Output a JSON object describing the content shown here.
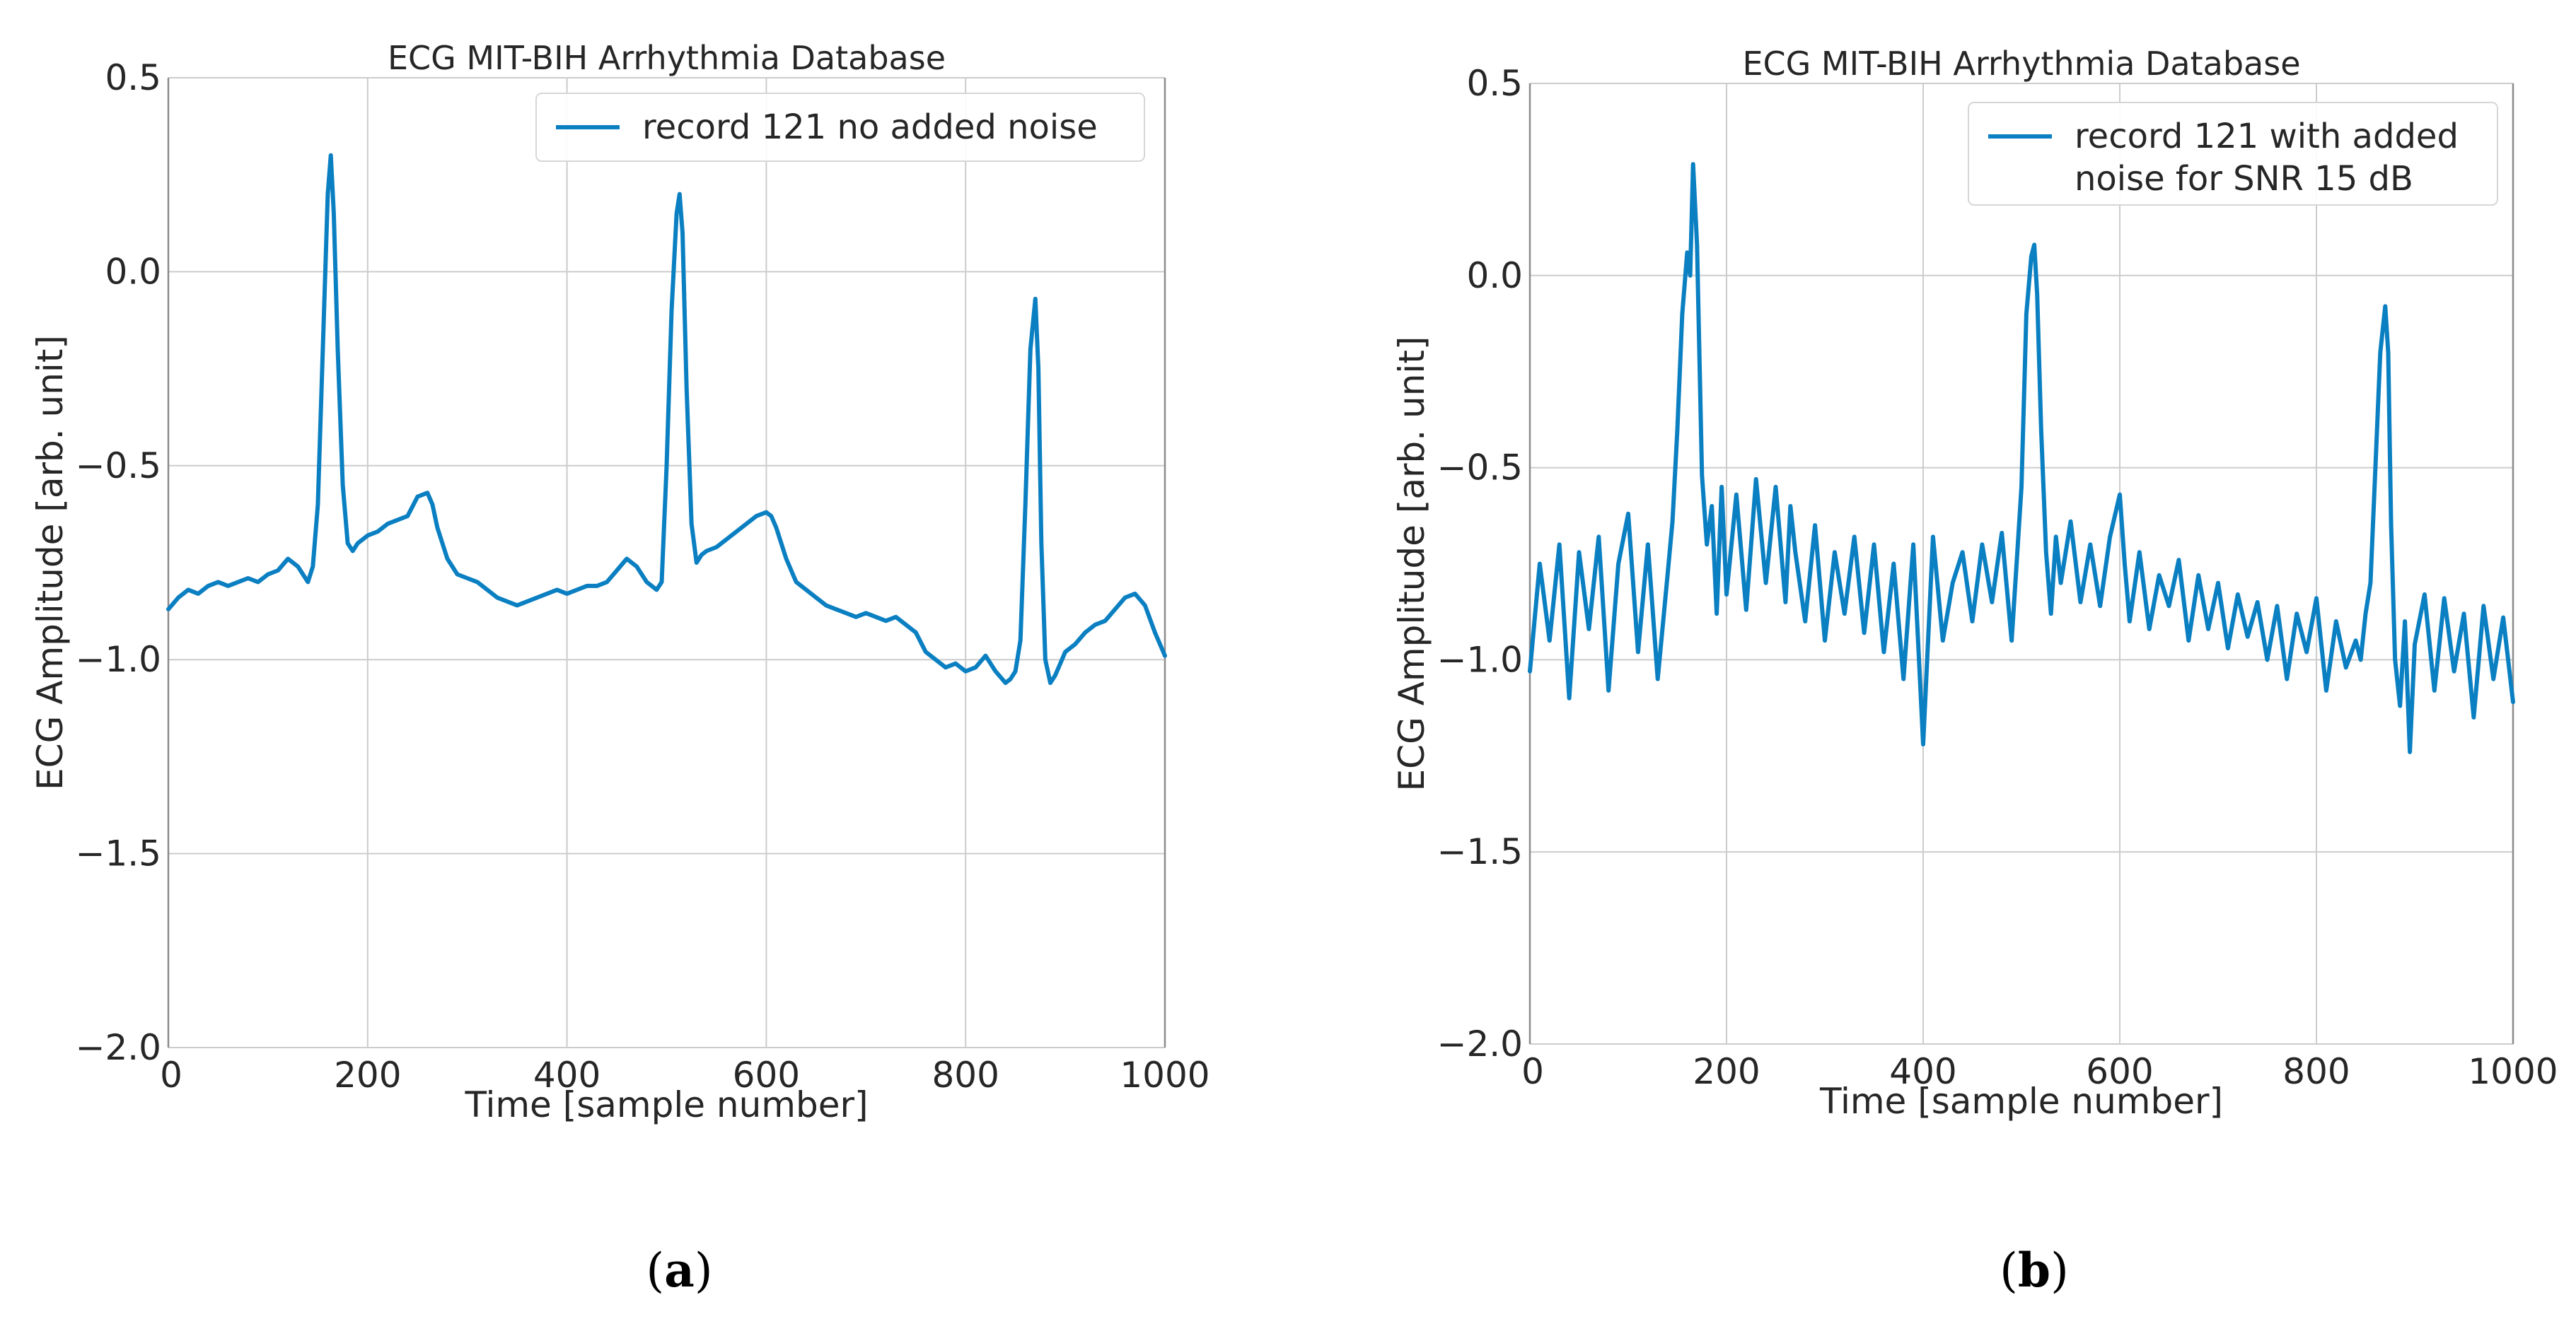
{
  "colors": {
    "line": "#0a7fc1",
    "grid": "#cccccc",
    "axis": "#8c8c8c",
    "text": "#262626"
  },
  "chart_data": [
    {
      "type": "line",
      "title": "ECG MIT-BIH Arrhythmia Database",
      "xlabel": "Time [sample number]",
      "ylabel": "ECG Amplitude [arb. unit]",
      "xlim": [
        0,
        1000
      ],
      "ylim": [
        -2.0,
        0.5
      ],
      "xticks": [
        0,
        200,
        400,
        600,
        800,
        1000
      ],
      "xtick_labels": [
        "0",
        "200",
        "400",
        "600",
        "800",
        "1000"
      ],
      "yticks": [
        -2.0,
        -1.5,
        -1.0,
        -0.5,
        0.0,
        0.5
      ],
      "ytick_labels": [
        "−2.0",
        "−1.5",
        "−1.0",
        "−0.5",
        "0.0",
        "0.5"
      ],
      "grid": true,
      "legend_position": "top-right",
      "panel_label": {
        "open": "(",
        "letter": "a",
        "close": ")"
      },
      "series": [
        {
          "name": "record 121 no added noise",
          "x": [
            0,
            10,
            20,
            30,
            40,
            50,
            60,
            70,
            80,
            90,
            100,
            110,
            120,
            130,
            140,
            145,
            150,
            155,
            160,
            163,
            166,
            170,
            175,
            180,
            185,
            190,
            195,
            200,
            210,
            220,
            230,
            240,
            250,
            260,
            265,
            270,
            280,
            290,
            300,
            310,
            320,
            330,
            340,
            350,
            360,
            370,
            380,
            390,
            400,
            410,
            420,
            430,
            440,
            450,
            460,
            470,
            480,
            490,
            495,
            500,
            505,
            510,
            513,
            516,
            520,
            525,
            530,
            535,
            540,
            550,
            560,
            570,
            580,
            590,
            600,
            605,
            610,
            620,
            630,
            640,
            650,
            660,
            670,
            680,
            690,
            700,
            710,
            720,
            730,
            740,
            750,
            760,
            770,
            780,
            790,
            800,
            810,
            820,
            830,
            840,
            845,
            850,
            855,
            860,
            865,
            870,
            873,
            876,
            880,
            885,
            890,
            895,
            900,
            910,
            920,
            930,
            940,
            950,
            960,
            970,
            980,
            990,
            1000
          ],
          "y": [
            -0.87,
            -0.84,
            -0.82,
            -0.83,
            -0.81,
            -0.8,
            -0.81,
            -0.8,
            -0.79,
            -0.8,
            -0.78,
            -0.77,
            -0.74,
            -0.76,
            -0.8,
            -0.76,
            -0.6,
            -0.2,
            0.2,
            0.3,
            0.15,
            -0.2,
            -0.55,
            -0.7,
            -0.72,
            -0.7,
            -0.69,
            -0.68,
            -0.67,
            -0.65,
            -0.64,
            -0.63,
            -0.58,
            -0.57,
            -0.6,
            -0.66,
            -0.74,
            -0.78,
            -0.79,
            -0.8,
            -0.82,
            -0.84,
            -0.85,
            -0.86,
            -0.85,
            -0.84,
            -0.83,
            -0.82,
            -0.83,
            -0.82,
            -0.81,
            -0.81,
            -0.8,
            -0.77,
            -0.74,
            -0.76,
            -0.8,
            -0.82,
            -0.8,
            -0.5,
            -0.1,
            0.15,
            0.2,
            0.1,
            -0.3,
            -0.65,
            -0.75,
            -0.73,
            -0.72,
            -0.71,
            -0.69,
            -0.67,
            -0.65,
            -0.63,
            -0.62,
            -0.63,
            -0.66,
            -0.74,
            -0.8,
            -0.82,
            -0.84,
            -0.86,
            -0.87,
            -0.88,
            -0.89,
            -0.88,
            -0.89,
            -0.9,
            -0.89,
            -0.91,
            -0.93,
            -0.98,
            -1.0,
            -1.02,
            -1.01,
            -1.03,
            -1.02,
            -0.99,
            -1.03,
            -1.06,
            -1.05,
            -1.03,
            -0.95,
            -0.6,
            -0.2,
            -0.07,
            -0.25,
            -0.7,
            -1.0,
            -1.06,
            -1.04,
            -1.01,
            -0.98,
            -0.96,
            -0.93,
            -0.91,
            -0.9,
            -0.87,
            -0.84,
            -0.83,
            -0.86,
            -0.93,
            -0.99
          ]
        }
      ]
    },
    {
      "type": "line",
      "title": "ECG MIT-BIH Arrhythmia Database",
      "xlabel": "Time [sample number]",
      "ylabel": "ECG Amplitude [arb. unit]",
      "xlim": [
        0,
        1000
      ],
      "ylim": [
        -2.0,
        0.5
      ],
      "xticks": [
        0,
        200,
        400,
        600,
        800,
        1000
      ],
      "xtick_labels": [
        "0",
        "200",
        "400",
        "600",
        "800",
        "1000"
      ],
      "yticks": [
        -2.0,
        -1.5,
        -1.0,
        -0.5,
        0.0,
        0.5
      ],
      "ytick_labels": [
        "−2.0",
        "−1.5",
        "−1.0",
        "−0.5",
        "0.0",
        "0.5"
      ],
      "grid": true,
      "legend_position": "top-right",
      "panel_label": {
        "open": "(",
        "letter": "b",
        "close": ")"
      },
      "series": [
        {
          "name": "record 121 with added noise for SNR 15 dB",
          "legend_lines": [
            "record 121 with added",
            "noise for SNR 15 dB"
          ],
          "x": [
            0,
            10,
            20,
            30,
            40,
            50,
            60,
            70,
            80,
            90,
            100,
            110,
            120,
            130,
            140,
            145,
            150,
            155,
            160,
            163,
            166,
            170,
            175,
            180,
            185,
            190,
            195,
            200,
            210,
            220,
            230,
            240,
            250,
            260,
            265,
            270,
            280,
            290,
            300,
            310,
            320,
            330,
            340,
            350,
            360,
            370,
            380,
            390,
            400,
            410,
            420,
            430,
            440,
            450,
            460,
            470,
            480,
            490,
            495,
            500,
            505,
            510,
            513,
            516,
            520,
            525,
            530,
            535,
            540,
            550,
            560,
            570,
            580,
            590,
            600,
            605,
            610,
            620,
            630,
            640,
            650,
            660,
            670,
            680,
            690,
            700,
            710,
            720,
            730,
            740,
            750,
            760,
            770,
            780,
            790,
            800,
            810,
            820,
            830,
            840,
            845,
            850,
            855,
            860,
            865,
            870,
            873,
            876,
            880,
            885,
            890,
            895,
            900,
            910,
            920,
            930,
            940,
            950,
            960,
            970,
            980,
            990,
            1000
          ],
          "y": [
            -1.03,
            -0.75,
            -0.95,
            -0.7,
            -1.1,
            -0.72,
            -0.92,
            -0.68,
            -1.08,
            -0.75,
            -0.62,
            -0.98,
            -0.7,
            -1.05,
            -0.78,
            -0.64,
            -0.4,
            -0.1,
            0.06,
            0.0,
            0.29,
            0.08,
            -0.52,
            -0.7,
            -0.6,
            -0.88,
            -0.55,
            -0.83,
            -0.57,
            -0.87,
            -0.53,
            -0.8,
            -0.55,
            -0.85,
            -0.6,
            -0.72,
            -0.9,
            -0.65,
            -0.95,
            -0.72,
            -0.88,
            -0.68,
            -0.93,
            -0.7,
            -0.98,
            -0.75,
            -1.05,
            -0.7,
            -1.22,
            -0.68,
            -0.95,
            -0.8,
            -0.72,
            -0.9,
            -0.7,
            -0.85,
            -0.67,
            -0.95,
            -0.75,
            -0.55,
            -0.1,
            0.05,
            0.08,
            -0.05,
            -0.4,
            -0.72,
            -0.88,
            -0.68,
            -0.8,
            -0.64,
            -0.85,
            -0.7,
            -0.86,
            -0.68,
            -0.57,
            -0.75,
            -0.9,
            -0.72,
            -0.92,
            -0.78,
            -0.86,
            -0.74,
            -0.95,
            -0.78,
            -0.92,
            -0.8,
            -0.97,
            -0.83,
            -0.94,
            -0.85,
            -1.0,
            -0.86,
            -1.05,
            -0.88,
            -0.98,
            -0.84,
            -1.08,
            -0.9,
            -1.02,
            -0.95,
            -1.0,
            -0.88,
            -0.8,
            -0.5,
            -0.2,
            -0.08,
            -0.2,
            -0.65,
            -1.0,
            -1.12,
            -0.9,
            -1.24,
            -0.96,
            -0.83,
            -1.08,
            -0.84,
            -1.03,
            -0.88,
            -1.15,
            -0.86,
            -1.05,
            -0.89,
            -1.11
          ]
        }
      ]
    }
  ]
}
